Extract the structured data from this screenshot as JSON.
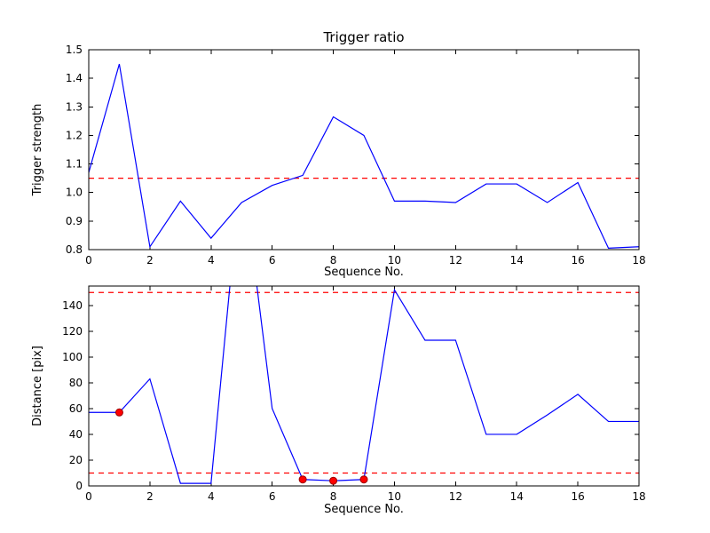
{
  "figure": {
    "background": "#ffffff",
    "line_color": "#0000ff",
    "threshold_color": "#ff0000",
    "marker_color": "#ff0000",
    "marker_edge_color": "#990000"
  },
  "chart_data": [
    {
      "type": "line",
      "title": "Trigger ratio",
      "xlabel": "Sequence No.",
      "ylabel": "Trigger strength",
      "xlim": [
        0,
        18
      ],
      "ylim": [
        0.8,
        1.5
      ],
      "xticks": [
        0,
        2,
        4,
        6,
        8,
        10,
        12,
        14,
        16,
        18
      ],
      "xtick_labels": [
        "0",
        "2",
        "4",
        "6",
        "8",
        "10",
        "12",
        "14",
        "16",
        "18"
      ],
      "yticks": [
        0.8,
        0.9,
        1.0,
        1.1,
        1.2,
        1.3,
        1.4,
        1.5
      ],
      "ytick_labels": [
        "0.8",
        "0.9",
        "1.0",
        "1.1",
        "1.2",
        "1.3",
        "1.4",
        "1.5"
      ],
      "x": [
        0,
        1,
        2,
        3,
        4,
        5,
        6,
        7,
        8,
        9,
        10,
        11,
        12,
        13,
        14,
        15,
        16,
        17,
        18
      ],
      "y": [
        1.07,
        1.45,
        0.81,
        0.97,
        0.84,
        0.965,
        1.025,
        1.06,
        1.265,
        1.2,
        0.97,
        0.97,
        0.965,
        1.03,
        1.03,
        0.965,
        1.035,
        0.805,
        0.81
      ],
      "thresholds": [
        1.05
      ],
      "highlight_points": [],
      "grid": false,
      "legend": null
    },
    {
      "type": "line",
      "title": "",
      "xlabel": "Sequence No.",
      "ylabel": "Distance [pix]",
      "xlim": [
        0,
        18
      ],
      "ylim": [
        0,
        155
      ],
      "xticks": [
        0,
        2,
        4,
        6,
        8,
        10,
        12,
        14,
        16,
        18
      ],
      "xtick_labels": [
        "0",
        "2",
        "4",
        "6",
        "8",
        "10",
        "12",
        "14",
        "16",
        "18"
      ],
      "yticks": [
        0,
        20,
        40,
        60,
        80,
        100,
        120,
        140
      ],
      "ytick_labels": [
        "0",
        "20",
        "40",
        "60",
        "80",
        "100",
        "120",
        "140"
      ],
      "x": [
        0,
        1,
        2,
        3,
        4,
        5,
        6,
        7,
        8,
        9,
        10,
        11,
        12,
        13,
        14,
        15,
        16,
        17,
        18
      ],
      "y": [
        57,
        57,
        83,
        2,
        2,
        250,
        60,
        5,
        4,
        5,
        152,
        113,
        113,
        40,
        40,
        55,
        71,
        50,
        50
      ],
      "thresholds": [
        150,
        10
      ],
      "highlight_points": [
        {
          "x": 1,
          "y": 57
        },
        {
          "x": 7,
          "y": 5
        },
        {
          "x": 8,
          "y": 4
        },
        {
          "x": 9,
          "y": 5
        }
      ],
      "grid": false,
      "legend": null
    }
  ]
}
